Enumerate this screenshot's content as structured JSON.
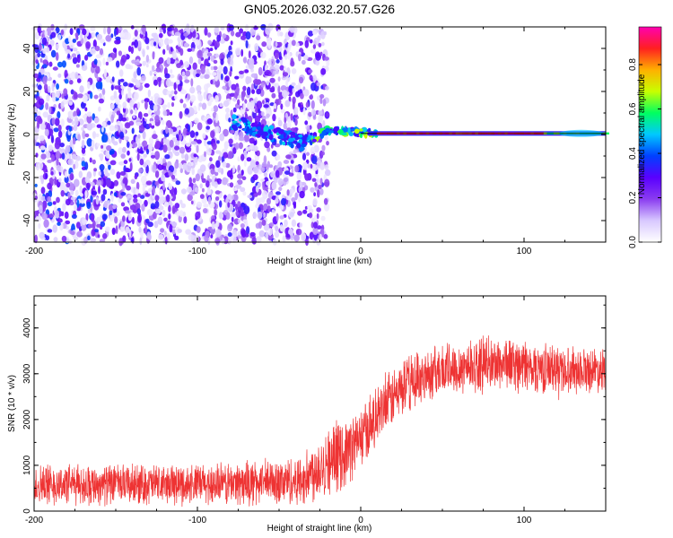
{
  "title": "GN05.2026.032.20.57.G26",
  "chart_data": [
    {
      "type": "heatmap",
      "name": "spectrogram",
      "xlabel": "Height of straight line (km)",
      "ylabel": "Frequency (Hz)",
      "xlim": [
        -200,
        150
      ],
      "ylim": [
        -50,
        50
      ],
      "xticks": [
        -200,
        -100,
        0,
        100
      ],
      "xtick_labels": [
        "-200",
        "-100",
        "0",
        "100"
      ],
      "yticks": [
        -40,
        -20,
        0,
        20,
        40
      ],
      "ytick_labels": [
        "-40",
        "-20",
        "0",
        "20",
        "40"
      ],
      "colorbar": {
        "label": "Normalized spectral amplitude",
        "range": [
          0,
          0.97
        ],
        "ticks": [
          0,
          0.2,
          0.4,
          0.6,
          0.8
        ],
        "tick_labels": [
          "0.0",
          "0.2",
          "0.4",
          "0.6",
          "0.8"
        ],
        "colors": [
          "#ffffff",
          "#d8c8ff",
          "#8a3cf0",
          "#5a00ff",
          "#0040ff",
          "#00c8ff",
          "#00ff60",
          "#c8ff00",
          "#ffb000",
          "#ff2020",
          "#ff00b0"
        ]
      },
      "features": {
        "noise_region_x": [
          -200,
          -35
        ],
        "transition_x": [
          -80,
          10
        ],
        "signal_line_x": [
          10,
          150
        ],
        "signal_frequency_hz": 0.5
      }
    },
    {
      "type": "line",
      "name": "snr",
      "xlabel": "Height of straight line (km)",
      "ylabel": "SNR (10 * v/v)",
      "xlim": [
        -200,
        150
      ],
      "ylim": [
        0,
        4700
      ],
      "xticks": [
        -200,
        -100,
        0,
        100
      ],
      "xtick_labels": [
        "-200",
        "-100",
        "0",
        "100"
      ],
      "yticks": [
        0,
        1000,
        2000,
        3000,
        4000
      ],
      "ytick_labels": [
        "0",
        "1000",
        "2000",
        "3000",
        "4000"
      ],
      "color": "#ee3333",
      "envelope": {
        "x": [
          -200,
          -100,
          -60,
          -35,
          -25,
          -10,
          0,
          10,
          20,
          30,
          40,
          60,
          80,
          90,
          100,
          120,
          150
        ],
        "mean": [
          580,
          580,
          620,
          680,
          1000,
          1250,
          1600,
          2050,
          2500,
          2800,
          3000,
          3150,
          3200,
          3250,
          3150,
          3100,
          3100
        ],
        "amplitude": [
          420,
          420,
          480,
          520,
          700,
          700,
          650,
          600,
          600,
          600,
          550,
          550,
          550,
          550,
          550,
          500,
          450
        ]
      }
    }
  ]
}
